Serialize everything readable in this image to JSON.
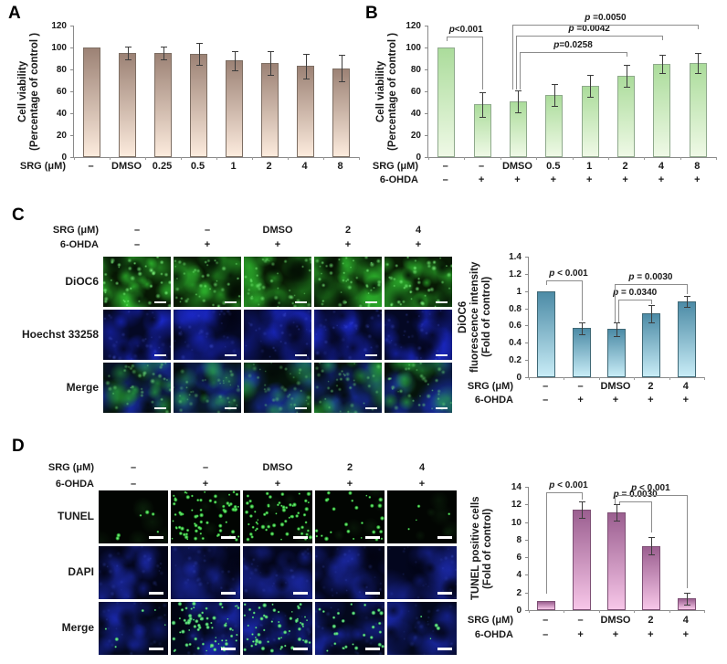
{
  "panels": {
    "a": {
      "label": "A"
    },
    "b": {
      "label": "B"
    },
    "c": {
      "label": "C",
      "images": {
        "header_rows": [
          {
            "label": "SRG (μM)",
            "values": [
              "–",
              "–",
              "DMSO",
              "2",
              "4"
            ]
          },
          {
            "label": "6-OHDA",
            "values": [
              "–",
              "+",
              "+",
              "+",
              "+"
            ]
          }
        ],
        "row_labels": [
          "DiOC6",
          "Hoechst 33258",
          "Merge"
        ],
        "green_intensity": [
          1.0,
          0.62,
          0.55,
          0.78,
          0.92
        ],
        "stains": [
          "DiOC6 green fluorescence",
          "Hoechst 33258 blue nuclei",
          "merged channels"
        ]
      }
    },
    "d": {
      "label": "D",
      "images": {
        "header_rows": [
          {
            "label": "SRG (μM)",
            "values": [
              "–",
              "–",
              "DMSO",
              "2",
              "4"
            ]
          },
          {
            "label": "6-OHDA",
            "values": [
              "–",
              "+",
              "+",
              "+",
              "+"
            ]
          }
        ],
        "row_labels": [
          "TUNEL",
          "DAPI",
          "Merge"
        ],
        "tunel_dot_counts": [
          6,
          70,
          62,
          28,
          4
        ],
        "stains": [
          "TUNEL green apoptotic dots",
          "DAPI blue nuclei",
          "merged channels"
        ]
      }
    }
  },
  "chart_data": [
    {
      "id": "a",
      "type": "bar",
      "ylabel_lines": [
        "Cell viability",
        "(Percentage of control )"
      ],
      "yticks": [
        0,
        20,
        40,
        60,
        80,
        100,
        120
      ],
      "ylim": [
        0,
        120
      ],
      "x_rows": [
        {
          "label": "SRG (μM)",
          "values": [
            "–",
            "DMSO",
            "0.25",
            "0.5",
            "1",
            "2",
            "4",
            "8"
          ]
        }
      ],
      "values": [
        100,
        95,
        95,
        94,
        88,
        86,
        83,
        81
      ],
      "errors": [
        0,
        6,
        6,
        10,
        9,
        11,
        11,
        12
      ],
      "bar_colors": {
        "top": "#9c8275",
        "bottom": "#fcebdd",
        "border": "#7d6e63"
      },
      "significance": []
    },
    {
      "id": "b",
      "type": "bar",
      "ylabel_lines": [
        "Cell viability",
        "(Percentage of control )"
      ],
      "yticks": [
        0,
        20,
        40,
        60,
        80,
        100,
        120
      ],
      "ylim": [
        0,
        120
      ],
      "x_rows": [
        {
          "label": "SRG (μM)",
          "values": [
            "–",
            "–",
            "DMSO",
            "0.5",
            "1",
            "2",
            "4",
            "8"
          ]
        },
        {
          "label": "6-OHDA",
          "values": [
            "–",
            "+",
            "+",
            "+",
            "+",
            "+",
            "+",
            "+"
          ]
        }
      ],
      "values": [
        100,
        48,
        51,
        57,
        65,
        74,
        85,
        86
      ],
      "errors": [
        0,
        11,
        10,
        10,
        10,
        10,
        8,
        9
      ],
      "bar_colors": {
        "top": "#abdc9b",
        "bottom": "#eff9e6",
        "border": "#8fa98c"
      },
      "significance": [
        {
          "label": "p<0.001",
          "from": 0,
          "to": 1,
          "y": 110,
          "ldrop": 106,
          "rdrop": 62,
          "anchor": "left"
        },
        {
          "label": "p=0.0258",
          "from": 2,
          "to": 5,
          "y": 96,
          "ldrop": 62,
          "rdrop": 92,
          "lx": 2
        },
        {
          "label": "p =0.0042",
          "from": 2,
          "to": 6,
          "y": 111,
          "ldrop": 62,
          "rdrop": 107,
          "lx": -2
        },
        {
          "label": "p =0.0050",
          "from": 2,
          "to": 7,
          "y": 121,
          "ldrop": 62,
          "rdrop": 117,
          "lx": -6
        }
      ]
    },
    {
      "id": "c",
      "type": "bar",
      "ylabel_lines": [
        "DiOC6",
        "fluorescence intensity",
        "(Fold of control)"
      ],
      "yticks": [
        0,
        0.2,
        0.4,
        0.6,
        0.8,
        1,
        1.2,
        1.4
      ],
      "ylim": [
        0,
        1.4
      ],
      "x_rows": [
        {
          "label": "SRG (μM)",
          "values": [
            "–",
            "–",
            "DMSO",
            "2",
            "4"
          ]
        },
        {
          "label": "6-OHDA",
          "values": [
            "–",
            "+",
            "+",
            "+",
            "+"
          ]
        }
      ],
      "values": [
        1,
        0.57,
        0.56,
        0.74,
        0.88
      ],
      "errors": [
        0,
        0.07,
        0.08,
        0.1,
        0.06
      ],
      "bar_colors": {
        "top": "#4c8ba6",
        "bottom": "#c8ecf6",
        "border": "#3f6875"
      },
      "significance": [
        {
          "label": "p < 0.001",
          "from": 0,
          "to": 1,
          "y": 1.12,
          "ldrop": 1.07,
          "rdrop": 0.66,
          "anchor": "left"
        },
        {
          "label": "p = 0.0340",
          "from": 2,
          "to": 3,
          "y": 0.9,
          "ldrop": 0.64,
          "rdrop": 0.85,
          "lx": 2
        },
        {
          "label": "p = 0.0030",
          "from": 2,
          "to": 4,
          "y": 1.08,
          "ldrop": 0.64,
          "rdrop": 0.96,
          "lx": -2
        }
      ]
    },
    {
      "id": "d",
      "type": "bar",
      "ylabel_lines": [
        "TUNEL positive cells",
        "(Fold of control)"
      ],
      "yticks": [
        0,
        2,
        4,
        6,
        8,
        10,
        12,
        14
      ],
      "ylim": [
        0,
        14
      ],
      "x_rows": [
        {
          "label": "SRG (μM)",
          "values": [
            "–",
            "–",
            "DMSO",
            "2",
            "4"
          ]
        },
        {
          "label": "6-OHDA",
          "values": [
            "–",
            "+",
            "+",
            "+",
            "+"
          ]
        }
      ],
      "values": [
        1,
        11.4,
        11.1,
        7.3,
        1.3
      ],
      "errors": [
        0,
        0.9,
        0.95,
        0.95,
        0.7
      ],
      "bar_colors": {
        "top": "#9b5f90",
        "bottom": "#f7c6e8",
        "border": "#7d4f74"
      },
      "significance": [
        {
          "label": "p < 0.001",
          "from": 0,
          "to": 1,
          "y": 13.4,
          "ldrop": 1.9,
          "rdrop": 12.5,
          "anchor": "left"
        },
        {
          "label": "p = 0.0030",
          "from": 2,
          "to": 3,
          "y": 12.3,
          "ldrop": 12.0,
          "rdrop": 8.8,
          "lx": 3
        },
        {
          "label": "p < 0.001",
          "from": 2,
          "to": 4,
          "y": 13.1,
          "ldrop": 12.0,
          "rdrop": 2.5,
          "lx": -2
        }
      ]
    }
  ]
}
